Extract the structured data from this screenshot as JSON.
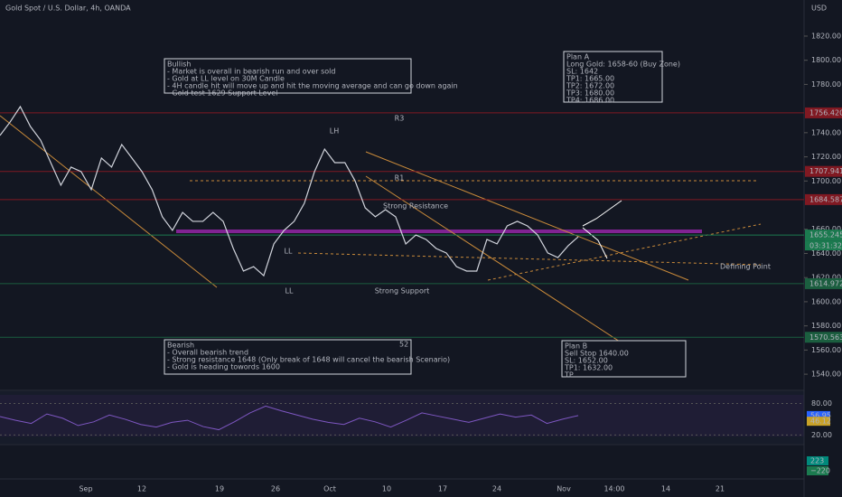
{
  "header": {
    "title": "Gold Spot / U.S. Dollar, 4h, OANDA",
    "currency": "USD"
  },
  "chart_data": {
    "type": "line",
    "color": "#d1d4dc",
    "values": [
      1737.7,
      1748.9,
      1761.6,
      1745.1,
      1733.9,
      1715.2,
      1696.5,
      1711.5,
      1707.7,
      1692.8,
      1719.0,
      1711.5,
      1730.2,
      1719.0,
      1707.7,
      1692.8,
      1670.4,
      1659.1,
      1674.0,
      1666.6,
      1666.6,
      1674.0,
      1666.6,
      1644.1,
      1625.4,
      1629.1,
      1621.6,
      1647.9,
      1659.1,
      1666.6,
      1681.5,
      1707.7,
      1726.4,
      1715.2,
      1715.2,
      1700.2,
      1677.8,
      1670.4,
      1676.3,
      1670.4,
      1647.9,
      1655.3,
      1651.6,
      1644.1,
      1640.4,
      1629.1,
      1625.4,
      1625.4,
      1651.6,
      1647.9,
      1662.8,
      1666.6,
      1662.8,
      1655.3,
      1640.4,
      1636.6,
      1646.3,
      1653.8
    ],
    "ylim": [
      1526.6,
      1849.9
    ],
    "yticks": [
      {
        "value": 1820,
        "label": "1820.00"
      },
      {
        "value": 1800,
        "label": "1800.00"
      },
      {
        "value": 1780,
        "label": "1780.00"
      },
      {
        "value": 1740,
        "label": "1740.00"
      },
      {
        "value": 1720,
        "label": "1720.00"
      },
      {
        "value": 1700,
        "label": "1700.00"
      },
      {
        "value": 1660,
        "label": "1660.00"
      },
      {
        "value": 1640,
        "label": "1640.00"
      },
      {
        "value": 1620,
        "label": "1620.00"
      },
      {
        "value": 1600,
        "label": "1600.00"
      },
      {
        "value": 1580,
        "label": "1580.00"
      },
      {
        "value": 1560,
        "label": "1560.00"
      },
      {
        "value": 1540,
        "label": "1540.00"
      }
    ],
    "price_tags": [
      {
        "value": 1756.42,
        "label": "1756.420",
        "color": "#801922"
      },
      {
        "value": 1707.941,
        "label": "1707.941",
        "color": "#801922"
      },
      {
        "value": 1684.587,
        "label": "1684.587",
        "color": "#801922"
      },
      {
        "value": 1655.245,
        "label": "1655.245",
        "color": "#1b7a4f"
      },
      {
        "value": 1614.972,
        "label": "1614.972",
        "color": "#1b5e3f"
      },
      {
        "value": 1570.563,
        "label": "1570.563",
        "color": "#1b5e3f"
      }
    ],
    "countdown": "03:31:32",
    "time_labels": [
      "Sep",
      "12",
      "19",
      "26",
      "Oct",
      "10",
      "17",
      "24",
      "Nov",
      "14:00",
      "14",
      "21"
    ]
  },
  "annotations": {
    "bullish": [
      "Bullish",
      "- Market is overall in bearish run and over sold",
      "- Gold at LL level on 30M Candle",
      "- 4H candle hit will move up and hit the moving average and can go down again",
      "- Gold test 1629 Support Level"
    ],
    "plan_a": [
      "Plan A",
      "Long Gold: 1658-60 (Buy Zone)",
      "SL: 1642",
      "TP1: 1665.00",
      "TP2: 1672.00",
      "TP3: 1680.00",
      "TP4: 1686.00"
    ],
    "bearish": [
      "Bearish",
      "- Overall bearish trend",
      "- Strong resistance 1648 (Only break of 1648 will cancel the bearish Scenario)",
      "- Gold is heading towords 1600",
      "-"
    ],
    "bearish_badge": "52",
    "plan_b": [
      "Plan B",
      "Sell Stop 1640.00",
      "SL:     1652.00",
      "TP1: 1632.00",
      "TP"
    ],
    "labels": [
      "R3",
      "LH",
      "R1",
      "Strong Resistance",
      "LL",
      "LL",
      "Strong Support",
      "Defining Point"
    ]
  },
  "rsi": {
    "ylim": [
      3.4,
      103.2
    ],
    "ticks": [
      {
        "value": 80,
        "label": "80.00"
      },
      {
        "value": 20,
        "label": "20.00"
      }
    ],
    "values": [
      55,
      48,
      42,
      60,
      52,
      38,
      45,
      58,
      50,
      40,
      35,
      44,
      48,
      36,
      30,
      45,
      62,
      75,
      66,
      58,
      50,
      44,
      40,
      52,
      45,
      35,
      48,
      62,
      56,
      50,
      44,
      52,
      60,
      54,
      58,
      42,
      50,
      57
    ],
    "tags": [
      {
        "value": 56.95,
        "label": "56.95",
        "color": "#2962ff"
      },
      {
        "value": 46.12,
        "label": "46.12",
        "color": "#c9a227"
      }
    ]
  },
  "momentum": {
    "tags": [
      "223",
      "−220"
    ]
  }
}
